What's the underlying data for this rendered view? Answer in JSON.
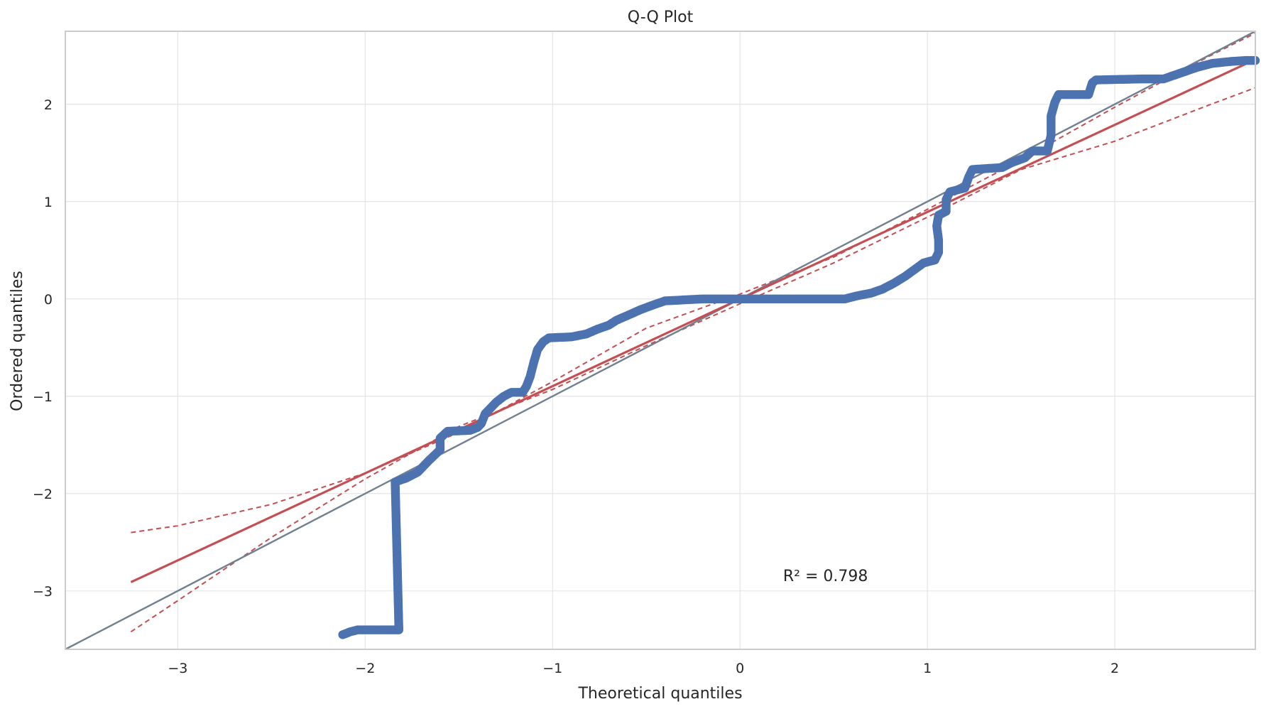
{
  "chart_data": {
    "type": "scatter",
    "title": "Q-Q Plot",
    "xlabel": "Theoretical quantiles",
    "ylabel": "Ordered quantiles",
    "xlim": [
      -3.6,
      2.75
    ],
    "ylim": [
      -3.6,
      2.75
    ],
    "x_ticks": [
      -3,
      -2,
      -1,
      0,
      1,
      2
    ],
    "y_ticks": [
      -3,
      -2,
      -1,
      0,
      1,
      2
    ],
    "x_tick_labels": [
      "−3",
      "−2",
      "−1",
      "0",
      "1",
      "2"
    ],
    "y_tick_labels": [
      "−3",
      "−2",
      "−1",
      "0",
      "1",
      "2"
    ],
    "grid": true,
    "annotation": {
      "text": "R² = 0.798",
      "x": 0.23,
      "y": -2.9
    },
    "colors": {
      "points": "#4c72b0",
      "fit": "#c44e52",
      "reference": "#708090",
      "grid": "#e5e5e5",
      "spine": "#cccccc"
    },
    "quantile_curve": [
      [
        -2.12,
        -3.45
      ],
      [
        -2.08,
        -3.42
      ],
      [
        -2.04,
        -3.4
      ],
      [
        -1.82,
        -3.4
      ],
      [
        -1.84,
        -1.88
      ],
      [
        -1.78,
        -1.84
      ],
      [
        -1.72,
        -1.78
      ],
      [
        -1.66,
        -1.66
      ],
      [
        -1.6,
        -1.55
      ],
      [
        -1.6,
        -1.43
      ],
      [
        -1.56,
        -1.36
      ],
      [
        -1.44,
        -1.35
      ],
      [
        -1.4,
        -1.32
      ],
      [
        -1.38,
        -1.28
      ],
      [
        -1.36,
        -1.18
      ],
      [
        -1.3,
        -1.06
      ],
      [
        -1.26,
        -1.0
      ],
      [
        -1.22,
        -0.96
      ],
      [
        -1.16,
        -0.96
      ],
      [
        -1.14,
        -0.9
      ],
      [
        -1.12,
        -0.8
      ],
      [
        -1.1,
        -0.65
      ],
      [
        -1.08,
        -0.52
      ],
      [
        -1.05,
        -0.44
      ],
      [
        -1.02,
        -0.4
      ],
      [
        -0.9,
        -0.39
      ],
      [
        -0.82,
        -0.36
      ],
      [
        -0.76,
        -0.31
      ],
      [
        -0.7,
        -0.27
      ],
      [
        -0.66,
        -0.22
      ],
      [
        -0.6,
        -0.17
      ],
      [
        -0.53,
        -0.11
      ],
      [
        -0.46,
        -0.06
      ],
      [
        -0.4,
        -0.02
      ],
      [
        -0.3,
        -0.01
      ],
      [
        -0.2,
        0.0
      ],
      [
        0.0,
        0.0
      ],
      [
        0.3,
        0.0
      ],
      [
        0.56,
        0.0
      ],
      [
        0.62,
        0.03
      ],
      [
        0.7,
        0.06
      ],
      [
        0.76,
        0.1
      ],
      [
        0.82,
        0.16
      ],
      [
        0.88,
        0.23
      ],
      [
        0.93,
        0.3
      ],
      [
        0.98,
        0.37
      ],
      [
        1.04,
        0.4
      ],
      [
        1.06,
        0.48
      ],
      [
        1.06,
        0.6
      ],
      [
        1.05,
        0.75
      ],
      [
        1.06,
        0.86
      ],
      [
        1.1,
        0.9
      ],
      [
        1.1,
        1.02
      ],
      [
        1.12,
        1.1
      ],
      [
        1.2,
        1.14
      ],
      [
        1.22,
        1.25
      ],
      [
        1.24,
        1.33
      ],
      [
        1.4,
        1.35
      ],
      [
        1.45,
        1.4
      ],
      [
        1.52,
        1.45
      ],
      [
        1.56,
        1.52
      ],
      [
        1.64,
        1.52
      ],
      [
        1.66,
        1.68
      ],
      [
        1.66,
        1.88
      ],
      [
        1.68,
        2.02
      ],
      [
        1.7,
        2.1
      ],
      [
        1.86,
        2.1
      ],
      [
        1.88,
        2.22
      ],
      [
        1.9,
        2.25
      ],
      [
        2.14,
        2.26
      ],
      [
        2.26,
        2.26
      ],
      [
        2.32,
        2.3
      ],
      [
        2.38,
        2.34
      ],
      [
        2.44,
        2.38
      ],
      [
        2.52,
        2.42
      ],
      [
        2.62,
        2.44
      ],
      [
        2.7,
        2.45
      ],
      [
        2.75,
        2.45
      ]
    ],
    "reference_line": {
      "x": [
        -3.6,
        2.75
      ],
      "y": [
        -3.6,
        2.75
      ]
    },
    "fit_line": {
      "x": [
        -3.25,
        2.75
      ],
      "y": [
        -2.91,
        2.46
      ]
    },
    "confidence_band": {
      "upper": [
        [
          -3.25,
          -2.4
        ],
        [
          -3.0,
          -2.33
        ],
        [
          -2.5,
          -2.11
        ],
        [
          -2.0,
          -1.79
        ],
        [
          -1.5,
          -1.37
        ],
        [
          -1.0,
          -0.85
        ],
        [
          -0.5,
          -0.3
        ],
        [
          0.0,
          0.05
        ],
        [
          0.5,
          0.43
        ],
        [
          1.0,
          0.92
        ],
        [
          1.5,
          1.43
        ],
        [
          2.0,
          1.97
        ],
        [
          2.5,
          2.49
        ],
        [
          2.75,
          2.73
        ]
      ],
      "lower": [
        [
          -3.25,
          -3.42
        ],
        [
          -3.0,
          -3.1
        ],
        [
          -2.5,
          -2.45
        ],
        [
          -2.0,
          -1.85
        ],
        [
          -1.5,
          -1.31
        ],
        [
          -1.0,
          -0.93
        ],
        [
          -0.5,
          -0.48
        ],
        [
          0.0,
          -0.05
        ],
        [
          0.5,
          0.37
        ],
        [
          1.0,
          0.84
        ],
        [
          1.5,
          1.33
        ],
        [
          2.0,
          1.62
        ],
        [
          2.5,
          1.99
        ],
        [
          2.75,
          2.17
        ]
      ]
    }
  }
}
